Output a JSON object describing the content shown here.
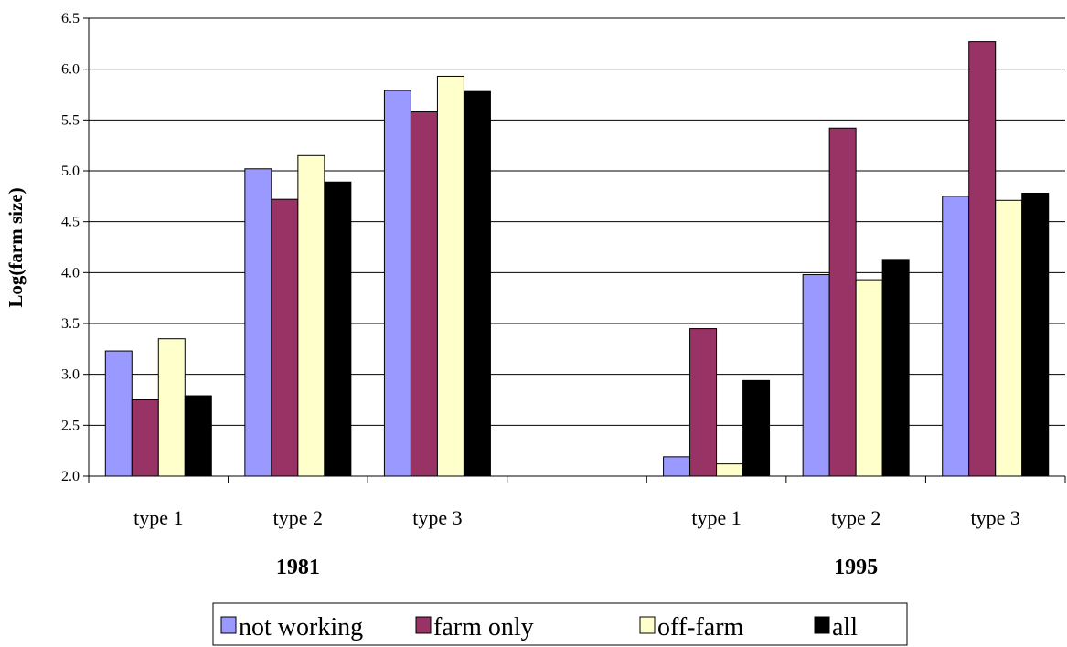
{
  "chart_data": {
    "type": "bar",
    "ylabel": "Log(farm size)",
    "ylim": [
      2.0,
      6.5
    ],
    "yticks": [
      "2.0",
      "2.5",
      "3.0",
      "3.5",
      "4.0",
      "4.5",
      "5.0",
      "5.5",
      "6.0",
      "6.5"
    ],
    "categories": [
      "type 1",
      "type 2",
      "type 3",
      "",
      "type 1",
      "type 2",
      "type 3"
    ],
    "groups": [
      {
        "label": "1981",
        "categories": [
          "type 1",
          "type 2",
          "type 3"
        ]
      },
      {
        "label": "1995",
        "categories": [
          "type 1",
          "type 2",
          "type 3"
        ]
      }
    ],
    "series": [
      {
        "name": "not working",
        "color": "#9999FF",
        "values": [
          3.23,
          5.02,
          5.79,
          null,
          2.19,
          3.98,
          4.75
        ]
      },
      {
        "name": "farm only",
        "color": "#993366",
        "values": [
          2.75,
          4.72,
          5.58,
          null,
          3.45,
          5.42,
          6.27
        ]
      },
      {
        "name": "off-farm",
        "color": "#FFFFCC",
        "values": [
          3.35,
          5.15,
          5.93,
          null,
          2.12,
          3.93,
          4.71
        ]
      },
      {
        "name": "all",
        "color": "#000000",
        "values": [
          2.79,
          4.89,
          5.78,
          null,
          2.94,
          4.13,
          4.78
        ]
      }
    ],
    "grid": true,
    "legend_position": "bottom"
  }
}
